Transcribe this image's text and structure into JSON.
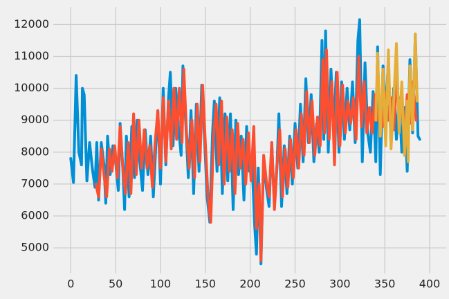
{
  "chart_data": {
    "type": "line",
    "grid": true,
    "xlim": [
      -19.5,
      418.5
    ],
    "ylim": [
      4200,
      12550
    ],
    "xticks": [
      0,
      50,
      100,
      150,
      200,
      250,
      300,
      350,
      400
    ],
    "yticks": [
      5000,
      6000,
      7000,
      8000,
      9000,
      10000,
      11000,
      12000
    ],
    "series": [
      {
        "color": "#008fd5",
        "x": [
          0,
          3,
          6,
          9,
          12,
          13,
          15,
          18,
          21,
          24,
          27,
          29,
          31,
          34,
          37,
          39,
          41,
          44,
          47,
          50,
          53,
          55,
          58,
          60,
          62,
          65,
          68,
          71,
          74,
          77,
          80,
          83,
          86,
          89,
          92,
          95,
          97,
          100,
          103,
          106,
          109,
          111,
          114,
          117,
          120,
          123,
          125,
          128,
          131,
          134,
          137,
          140,
          143,
          146,
          149,
          152,
          155,
          158,
          160,
          163,
          166,
          169,
          172,
          175,
          178,
          181,
          184,
          187,
          190,
          193,
          196,
          199,
          202,
          205,
          207,
          209,
          212,
          215,
          218,
          221,
          224,
          227,
          230,
          232,
          235,
          238,
          241,
          244,
          247,
          250,
          253,
          256,
          259,
          262,
          265,
          268,
          271,
          274,
          277,
          280,
          282,
          284,
          287,
          290,
          293,
          296,
          299,
          302,
          305,
          308,
          311,
          314,
          317,
          320,
          322,
          325,
          328,
          331,
          334,
          337,
          340,
          342,
          345,
          348,
          351,
          354,
          357,
          360,
          363,
          366,
          369,
          372,
          375,
          378,
          381,
          384,
          387,
          389
        ],
        "values": [
          7800,
          7050,
          10400,
          8000,
          7600,
          10000,
          9800,
          7100,
          8300,
          7500,
          6900,
          8300,
          6500,
          8300,
          7600,
          6400,
          8500,
          7300,
          8200,
          7700,
          6800,
          8900,
          7500,
          6200,
          8500,
          6600,
          8800,
          7200,
          9000,
          7700,
          6800,
          8700,
          7300,
          8500,
          6600,
          8300,
          9300,
          7000,
          10000,
          7600,
          9700,
          10500,
          8200,
          10000,
          8800,
          7900,
          10700,
          9000,
          7200,
          9300,
          6700,
          9500,
          7400,
          10100,
          8500,
          6600,
          5800,
          8600,
          9600,
          7400,
          9700,
          6700,
          9200,
          7100,
          9200,
          6200,
          9000,
          7300,
          8500,
          6500,
          8800,
          7400,
          7800,
          5700,
          4800,
          7500,
          4500,
          7800,
          6900,
          6300,
          8300,
          6300,
          7700,
          9200,
          6300,
          8200,
          6700,
          8500,
          7000,
          8900,
          7500,
          9500,
          7700,
          10300,
          8300,
          9800,
          7700,
          8900,
          8000,
          11500,
          8400,
          11800,
          8000,
          10600,
          8600,
          10500,
          8000,
          10200,
          8400,
          10000,
          8700,
          10200,
          8300,
          11500,
          12150,
          7700,
          10800,
          8600,
          8000,
          9900,
          7700,
          11300,
          7300,
          10700,
          9200,
          10900,
          8200,
          10000,
          8400,
          9700,
          8000,
          9400,
          7400,
          10900,
          8600,
          11700,
          8500,
          8400
        ]
      },
      {
        "color": "#fc4f30",
        "x": [
          28,
          31,
          34,
          37,
          40,
          43,
          46,
          49,
          52,
          55,
          58,
          61,
          64,
          67,
          70,
          73,
          76,
          79,
          82,
          85,
          88,
          91,
          94,
          97,
          100,
          103,
          106,
          109,
          112,
          115,
          118,
          121,
          124,
          126,
          129,
          132,
          135,
          138,
          141,
          144,
          147,
          150,
          153,
          156,
          159,
          162,
          165,
          168,
          171,
          174,
          177,
          180,
          183,
          186,
          189,
          192,
          195,
          198,
          201,
          204,
          207,
          210,
          212,
          215,
          218,
          221,
          224,
          227,
          230,
          233,
          236,
          239,
          242,
          245,
          248,
          251,
          254,
          257,
          260,
          263,
          266,
          269,
          272,
          275,
          278,
          281,
          283,
          285,
          288,
          291,
          294,
          297,
          300,
          303,
          306,
          309,
          312,
          315,
          318,
          321,
          324,
          327,
          330,
          333,
          336,
          339,
          342,
          345,
          348,
          351,
          354,
          357,
          360,
          363,
          366,
          369,
          372,
          375,
          378,
          381,
          385
        ],
        "values": [
          7000,
          6600,
          8100,
          7300,
          6600,
          8100,
          7400,
          8200,
          7200,
          8800,
          7500,
          6700,
          8300,
          6700,
          9200,
          7300,
          9000,
          7500,
          8700,
          7500,
          8200,
          6900,
          8300,
          9300,
          7500,
          9700,
          7700,
          9600,
          8100,
          10000,
          8400,
          10000,
          8300,
          10600,
          8600,
          7500,
          9000,
          7200,
          9500,
          7700,
          10100,
          8300,
          6600,
          5800,
          8400,
          9500,
          7600,
          9600,
          7000,
          9100,
          7400,
          8700,
          6700,
          8900,
          7500,
          8400,
          7000,
          8600,
          7100,
          8800,
          5600,
          7000,
          4600,
          7900,
          7100,
          6600,
          8300,
          6200,
          7600,
          8700,
          6600,
          8100,
          6900,
          8400,
          7200,
          8700,
          7500,
          9200,
          7900,
          9900,
          8300,
          9600,
          7900,
          9100,
          8200,
          10900,
          8600,
          11200,
          8400,
          10200,
          7600,
          10500,
          8200,
          10100,
          8600,
          9600,
          8900,
          9700,
          8400,
          11000,
          8800,
          10200,
          8600,
          9400,
          8600,
          9800,
          9000,
          9600,
          8800,
          9900,
          9000,
          9700,
          8700,
          10500,
          8900,
          9500,
          8500,
          9800,
          8900,
          10200,
          9000
        ]
      },
      {
        "color": "#e5ae38",
        "x": [
          340,
          342,
          345,
          348,
          351,
          354,
          357,
          360,
          363,
          366,
          369,
          372,
          375,
          376,
          378,
          381,
          384,
          386
        ],
        "values": [
          9000,
          11100,
          8500,
          10600,
          8200,
          11200,
          8100,
          9600,
          11400,
          8600,
          10200,
          7900,
          9600,
          7700,
          10700,
          8700,
          11700,
          9600
        ]
      }
    ]
  }
}
